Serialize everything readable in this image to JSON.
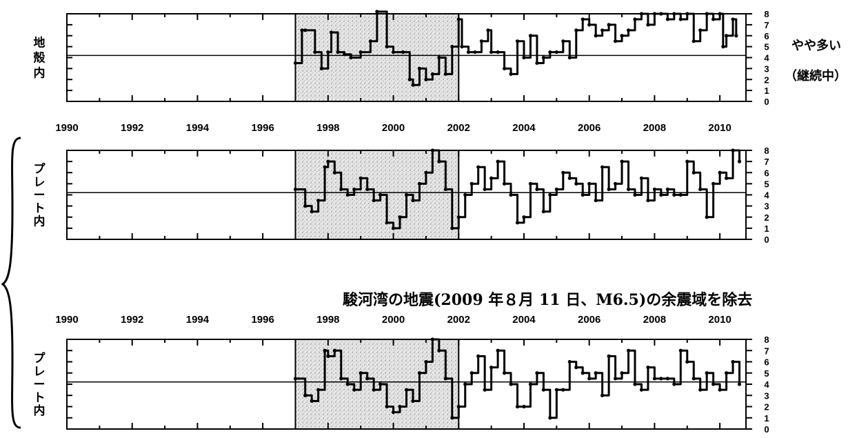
{
  "chart_data": [
    {
      "type": "line",
      "panel_label": "地殻内",
      "annotation": [
        "やや多い",
        "（継続中）"
      ],
      "x_ticks": [
        "1990",
        "1992",
        "1994",
        "1996",
        "1998",
        "2000",
        "2002",
        "2004",
        "2006",
        "2008",
        "2010"
      ],
      "xlim": [
        1990,
        2010.8
      ],
      "ylim": [
        0,
        8
      ],
      "y_ticks": [
        "0",
        "1",
        "2",
        "3",
        "4",
        "5",
        "6",
        "7",
        "8"
      ],
      "reference_line": 4.2,
      "shaded_period": [
        1997,
        2002
      ],
      "x": [
        1997.0,
        1997.2,
        1997.3,
        1997.6,
        1997.8,
        1998.0,
        1998.1,
        1998.3,
        1998.5,
        1998.7,
        1999.0,
        1999.3,
        1999.5,
        1999.8,
        2000.0,
        2000.3,
        2000.5,
        2000.6,
        2000.8,
        2001.0,
        2001.2,
        2001.4,
        2001.6,
        2001.8,
        2002.0,
        2002.1,
        2002.3,
        2002.5,
        2002.7,
        2002.9,
        2003.0,
        2003.2,
        2003.4,
        2003.6,
        2003.8,
        2004.0,
        2004.2,
        2004.4,
        2004.6,
        2004.8,
        2005.0,
        2005.2,
        2005.4,
        2005.6,
        2005.8,
        2006.0,
        2006.2,
        2006.4,
        2006.6,
        2006.8,
        2007.0,
        2007.2,
        2007.4,
        2007.6,
        2007.8,
        2008.0,
        2008.2,
        2008.4,
        2008.6,
        2008.8,
        2009.0,
        2009.2,
        2009.4,
        2009.6,
        2009.8,
        2010.0,
        2010.1,
        2010.2,
        2010.4,
        2010.5
      ],
      "values": [
        3.5,
        6.5,
        6.5,
        4.5,
        3.0,
        4.5,
        6.3,
        4.5,
        4.3,
        4.0,
        4.5,
        5.5,
        8.2,
        5.0,
        4.5,
        4.5,
        2.0,
        1.5,
        3.0,
        2.0,
        2.5,
        4.0,
        2.5,
        5.0,
        7.5,
        5.0,
        4.5,
        4.5,
        5.5,
        6.5,
        4.5,
        4.5,
        3.0,
        2.5,
        5.5,
        4.0,
        6.0,
        3.5,
        4.0,
        4.5,
        4.5,
        5.5,
        4.0,
        6.5,
        7.5,
        7.0,
        6.0,
        6.5,
        7.0,
        5.5,
        6.0,
        6.5,
        7.5,
        8.0,
        7.0,
        8.0,
        8.0,
        7.5,
        8.0,
        7.5,
        8.0,
        5.5,
        6.5,
        8.0,
        7.5,
        8.0,
        5.0,
        6.0,
        7.5,
        6.0
      ]
    },
    {
      "type": "line",
      "panel_label": "プレート内",
      "x_ticks": [
        "1990",
        "1992",
        "1994",
        "1996",
        "1998",
        "2000",
        "2002",
        "2004",
        "2006",
        "2008",
        "2010"
      ],
      "xlim": [
        1990,
        2010.8
      ],
      "ylim": [
        0,
        8
      ],
      "y_ticks": [
        "0",
        "1",
        "2",
        "3",
        "4",
        "5",
        "6",
        "7",
        "8"
      ],
      "reference_line": 4.2,
      "shaded_period": [
        1997,
        2002
      ],
      "x": [
        1997.0,
        1997.3,
        1997.5,
        1997.7,
        1997.9,
        1998.0,
        1998.2,
        1998.4,
        1998.6,
        1998.8,
        1999.0,
        1999.2,
        1999.4,
        1999.6,
        1999.8,
        2000.0,
        2000.2,
        2000.4,
        2000.6,
        2000.8,
        2001.0,
        2001.2,
        2001.4,
        2001.6,
        2001.8,
        2002.0,
        2002.2,
        2002.4,
        2002.6,
        2002.8,
        2003.0,
        2003.2,
        2003.4,
        2003.6,
        2003.8,
        2004.0,
        2004.2,
        2004.4,
        2004.6,
        2004.8,
        2005.0,
        2005.2,
        2005.4,
        2005.6,
        2005.8,
        2006.0,
        2006.2,
        2006.4,
        2006.6,
        2006.8,
        2007.0,
        2007.2,
        2007.4,
        2007.6,
        2007.8,
        2008.0,
        2008.2,
        2008.4,
        2008.6,
        2008.8,
        2009.0,
        2009.2,
        2009.4,
        2009.6,
        2009.8,
        2010.0,
        2010.2,
        2010.4,
        2010.6
      ],
      "values": [
        4.5,
        3.0,
        2.5,
        3.5,
        6.5,
        7.0,
        6.0,
        4.5,
        4.0,
        4.5,
        5.5,
        4.5,
        3.5,
        4.0,
        1.5,
        1.0,
        2.0,
        4.0,
        3.5,
        5.0,
        6.0,
        8.0,
        7.0,
        4.5,
        1.0,
        2.0,
        4.0,
        5.0,
        6.5,
        4.5,
        5.5,
        7.0,
        5.0,
        4.0,
        1.5,
        2.0,
        5.0,
        4.5,
        2.5,
        4.0,
        4.5,
        6.0,
        5.5,
        5.0,
        4.0,
        5.0,
        3.5,
        6.5,
        4.5,
        5.0,
        7.0,
        4.5,
        4.0,
        5.5,
        3.5,
        4.5,
        4.0,
        4.5,
        4.0,
        4.0,
        7.0,
        6.0,
        4.5,
        2.0,
        5.0,
        6.0,
        5.5,
        8.0,
        7.0
      ]
    },
    {
      "type": "line",
      "subtitle": "駿河湾の地震(2009 年８月 11 日、M6.5)の余震域を除去",
      "panel_label": "プレート内",
      "x_ticks": [
        "1990",
        "1992",
        "1994",
        "1996",
        "1998",
        "2000",
        "2002",
        "2004",
        "2006",
        "2008",
        "2010"
      ],
      "xlim": [
        1990,
        2010.8
      ],
      "ylim": [
        0,
        8
      ],
      "y_ticks": [
        "0",
        "1",
        "2",
        "3",
        "4",
        "5",
        "6",
        "7",
        "8"
      ],
      "reference_line": 4.2,
      "shaded_period": [
        1997,
        2002
      ],
      "x": [
        1997.0,
        1997.3,
        1997.5,
        1997.7,
        1997.9,
        1998.0,
        1998.2,
        1998.4,
        1998.6,
        1998.8,
        1999.0,
        1999.2,
        1999.4,
        1999.6,
        1999.8,
        2000.0,
        2000.2,
        2000.4,
        2000.6,
        2000.8,
        2001.0,
        2001.2,
        2001.4,
        2001.6,
        2001.8,
        2002.0,
        2002.2,
        2002.4,
        2002.6,
        2002.8,
        2003.0,
        2003.2,
        2003.4,
        2003.6,
        2003.8,
        2004.0,
        2004.2,
        2004.4,
        2004.6,
        2004.8,
        2005.0,
        2005.2,
        2005.4,
        2005.6,
        2005.8,
        2006.0,
        2006.2,
        2006.4,
        2006.6,
        2006.8,
        2007.0,
        2007.2,
        2007.4,
        2007.6,
        2007.8,
        2008.0,
        2008.2,
        2008.4,
        2008.6,
        2008.8,
        2009.0,
        2009.2,
        2009.4,
        2009.6,
        2009.8,
        2010.0,
        2010.2,
        2010.4,
        2010.6
      ],
      "values": [
        4.5,
        3.0,
        2.5,
        3.5,
        7.0,
        6.5,
        7.0,
        4.5,
        4.0,
        3.5,
        5.0,
        4.5,
        3.5,
        4.0,
        2.0,
        1.5,
        2.0,
        3.5,
        2.5,
        5.0,
        6.0,
        8.0,
        7.0,
        4.5,
        1.0,
        2.0,
        4.0,
        5.0,
        6.5,
        3.5,
        5.5,
        7.0,
        5.0,
        4.0,
        2.0,
        2.0,
        4.0,
        5.0,
        3.5,
        1.0,
        3.5,
        3.5,
        6.0,
        5.5,
        5.0,
        4.5,
        5.0,
        3.0,
        6.5,
        4.5,
        5.0,
        7.0,
        4.0,
        3.5,
        5.5,
        4.5,
        4.5,
        4.5,
        4.0,
        7.0,
        6.0,
        4.5,
        3.5,
        5.0,
        4.0,
        3.5,
        5.0,
        6.0,
        4.0
      ]
    }
  ]
}
